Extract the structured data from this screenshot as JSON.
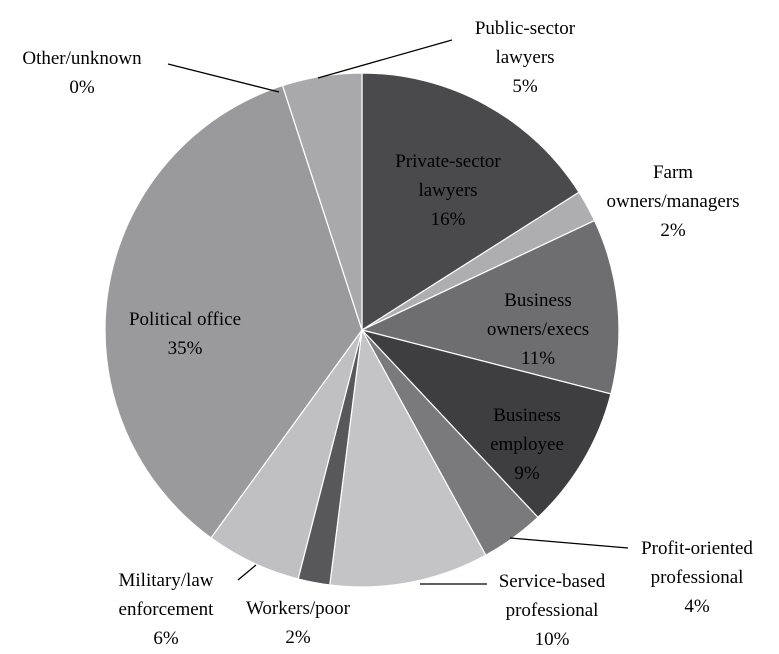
{
  "chart_data": {
    "type": "pie",
    "categories": [
      "Private-sector lawyers",
      "Farm owners/managers",
      "Business owners/execs",
      "Business employee",
      "Profit-oriented professional",
      "Service-based professional",
      "Workers/poor",
      "Military/law enforcement",
      "Political office",
      "Other/unknown",
      "Public-sector lawyers"
    ],
    "values": [
      16,
      2,
      11,
      9,
      4,
      10,
      2,
      6,
      35,
      0,
      5
    ],
    "value_labels": [
      "16%",
      "2%",
      "11%",
      "9%",
      "4%",
      "10%",
      "2%",
      "6%",
      "35%",
      "0%",
      "5%"
    ],
    "colors": [
      "#4a4a4c",
      "#aeaeb0",
      "#6e6e70",
      "#3e3e40",
      "#7a7a7c",
      "#c4c4c6",
      "#58585a",
      "#c0c0c2",
      "#9a9a9c",
      "#444446",
      "#a9a9ab"
    ]
  }
}
